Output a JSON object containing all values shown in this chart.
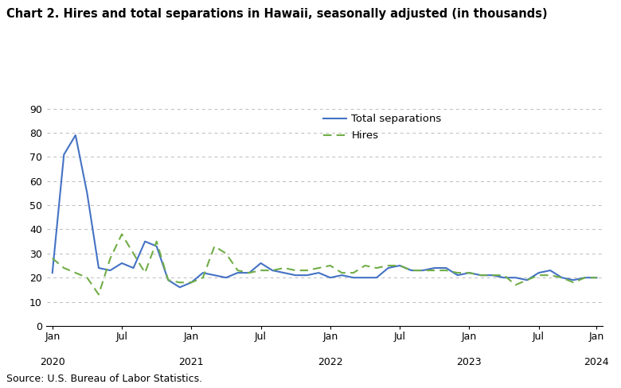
{
  "title": "Chart 2. Hires and total separations in Hawaii, seasonally adjusted (in thousands)",
  "source": "Source: U.S. Bureau of Labor Statistics.",
  "ylim": [
    0,
    90
  ],
  "yticks": [
    0,
    10,
    20,
    30,
    40,
    50,
    60,
    70,
    80,
    90
  ],
  "separations": [
    22,
    71,
    79,
    55,
    24,
    23,
    26,
    24,
    35,
    33,
    19,
    16,
    18,
    22,
    21,
    20,
    22,
    22,
    26,
    23,
    22,
    21,
    21,
    22,
    20,
    21,
    20,
    20,
    20,
    24,
    25,
    23,
    23,
    24,
    24,
    21,
    22,
    21,
    21,
    20,
    20,
    19,
    22,
    23,
    20,
    19,
    20,
    20
  ],
  "hires": [
    28,
    24,
    22,
    20,
    13,
    28,
    38,
    30,
    22,
    35,
    19,
    18,
    18,
    20,
    33,
    30,
    23,
    22,
    23,
    23,
    24,
    23,
    23,
    24,
    25,
    22,
    22,
    25,
    24,
    25,
    25,
    23,
    23,
    23,
    23,
    22,
    22,
    21,
    21,
    21,
    17,
    19,
    21,
    21,
    20,
    18,
    20,
    20
  ],
  "sep_color": "#4472C4",
  "hires_color": "#70AD47",
  "sep_label": "Total separations",
  "hires_label": "Hires",
  "x_tick_positions": [
    0,
    6,
    12,
    18,
    24,
    30,
    36,
    42,
    47
  ],
  "x_tick_top_labels": [
    "Jan",
    "Jul",
    "Jan",
    "Jul",
    "Jan",
    "Jul",
    "Jan",
    "Jul",
    "Jan"
  ],
  "x_tick_year_positions": [
    0,
    12,
    24,
    36,
    47
  ],
  "x_tick_year_labels": [
    "2020",
    "2021",
    "2022",
    "2023",
    "2024"
  ]
}
